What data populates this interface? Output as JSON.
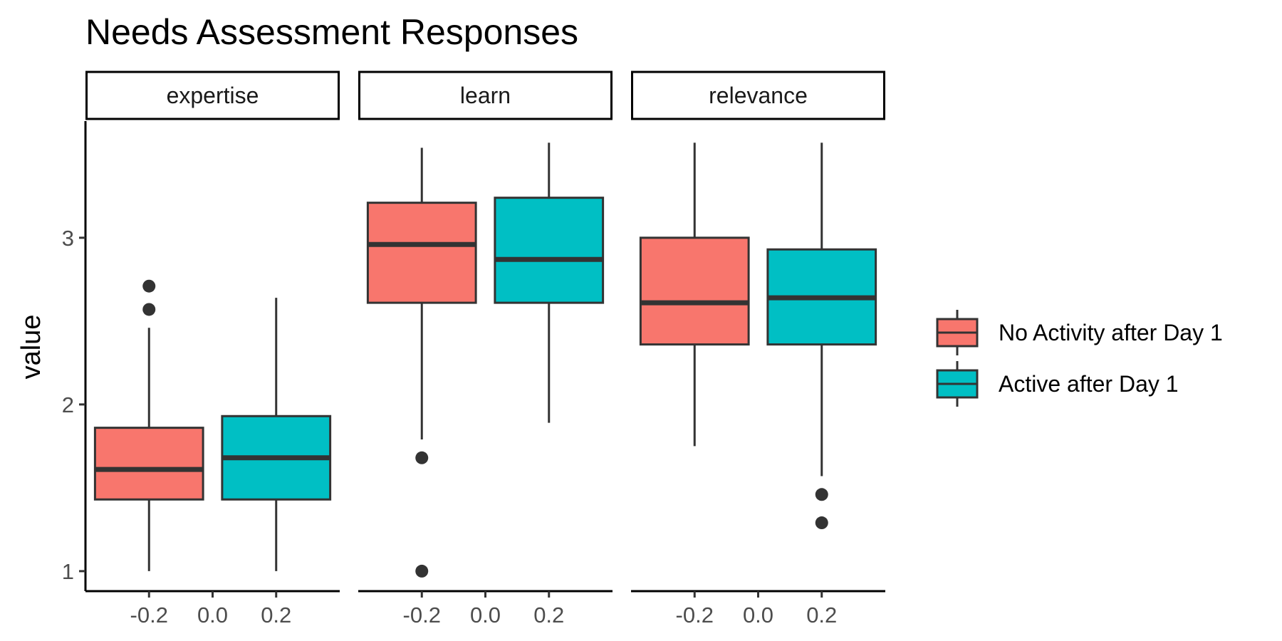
{
  "chart_data": {
    "type": "boxplot",
    "title": "Needs Assessment Responses",
    "xlabel": "",
    "ylabel": "value",
    "xlim": [
      -0.4,
      0.4
    ],
    "ylim": [
      0.88,
      3.7
    ],
    "x_ticks": [
      "-0.2",
      "0.0",
      "0.2"
    ],
    "y_ticks": [
      "1",
      "2",
      "3"
    ],
    "grid": false,
    "legend_position": "right",
    "series": [
      {
        "name": "No Activity after Day 1",
        "color": "#F8766D",
        "x": -0.2
      },
      {
        "name": "Active after Day 1",
        "color": "#00BFC4",
        "x": 0.2
      }
    ],
    "facets": [
      {
        "label": "expertise",
        "boxes": [
          {
            "series": "No Activity after Day 1",
            "whisker_low": 1.0,
            "q1": 1.43,
            "median": 1.61,
            "q3": 1.86,
            "whisker_high": 2.46,
            "outliers": [
              2.57,
              2.71
            ]
          },
          {
            "series": "Active after Day 1",
            "whisker_low": 1.0,
            "q1": 1.43,
            "median": 1.68,
            "q3": 1.93,
            "whisker_high": 2.64,
            "outliers": []
          }
        ]
      },
      {
        "label": "learn",
        "boxes": [
          {
            "series": "No Activity after Day 1",
            "whisker_low": 1.79,
            "q1": 2.61,
            "median": 2.96,
            "q3": 3.21,
            "whisker_high": 3.54,
            "outliers": [
              1.68,
              1.0
            ]
          },
          {
            "series": "Active after Day 1",
            "whisker_low": 1.89,
            "q1": 2.61,
            "median": 2.87,
            "q3": 3.24,
            "whisker_high": 3.57,
            "outliers": []
          }
        ]
      },
      {
        "label": "relevance",
        "boxes": [
          {
            "series": "No Activity after Day 1",
            "whisker_low": 1.75,
            "q1": 2.36,
            "median": 2.61,
            "q3": 3.0,
            "whisker_high": 3.57,
            "outliers": []
          },
          {
            "series": "Active after Day 1",
            "whisker_low": 1.57,
            "q1": 2.36,
            "median": 2.64,
            "q3": 2.93,
            "whisker_high": 3.57,
            "outliers": [
              1.46,
              1.29
            ]
          }
        ]
      }
    ]
  }
}
